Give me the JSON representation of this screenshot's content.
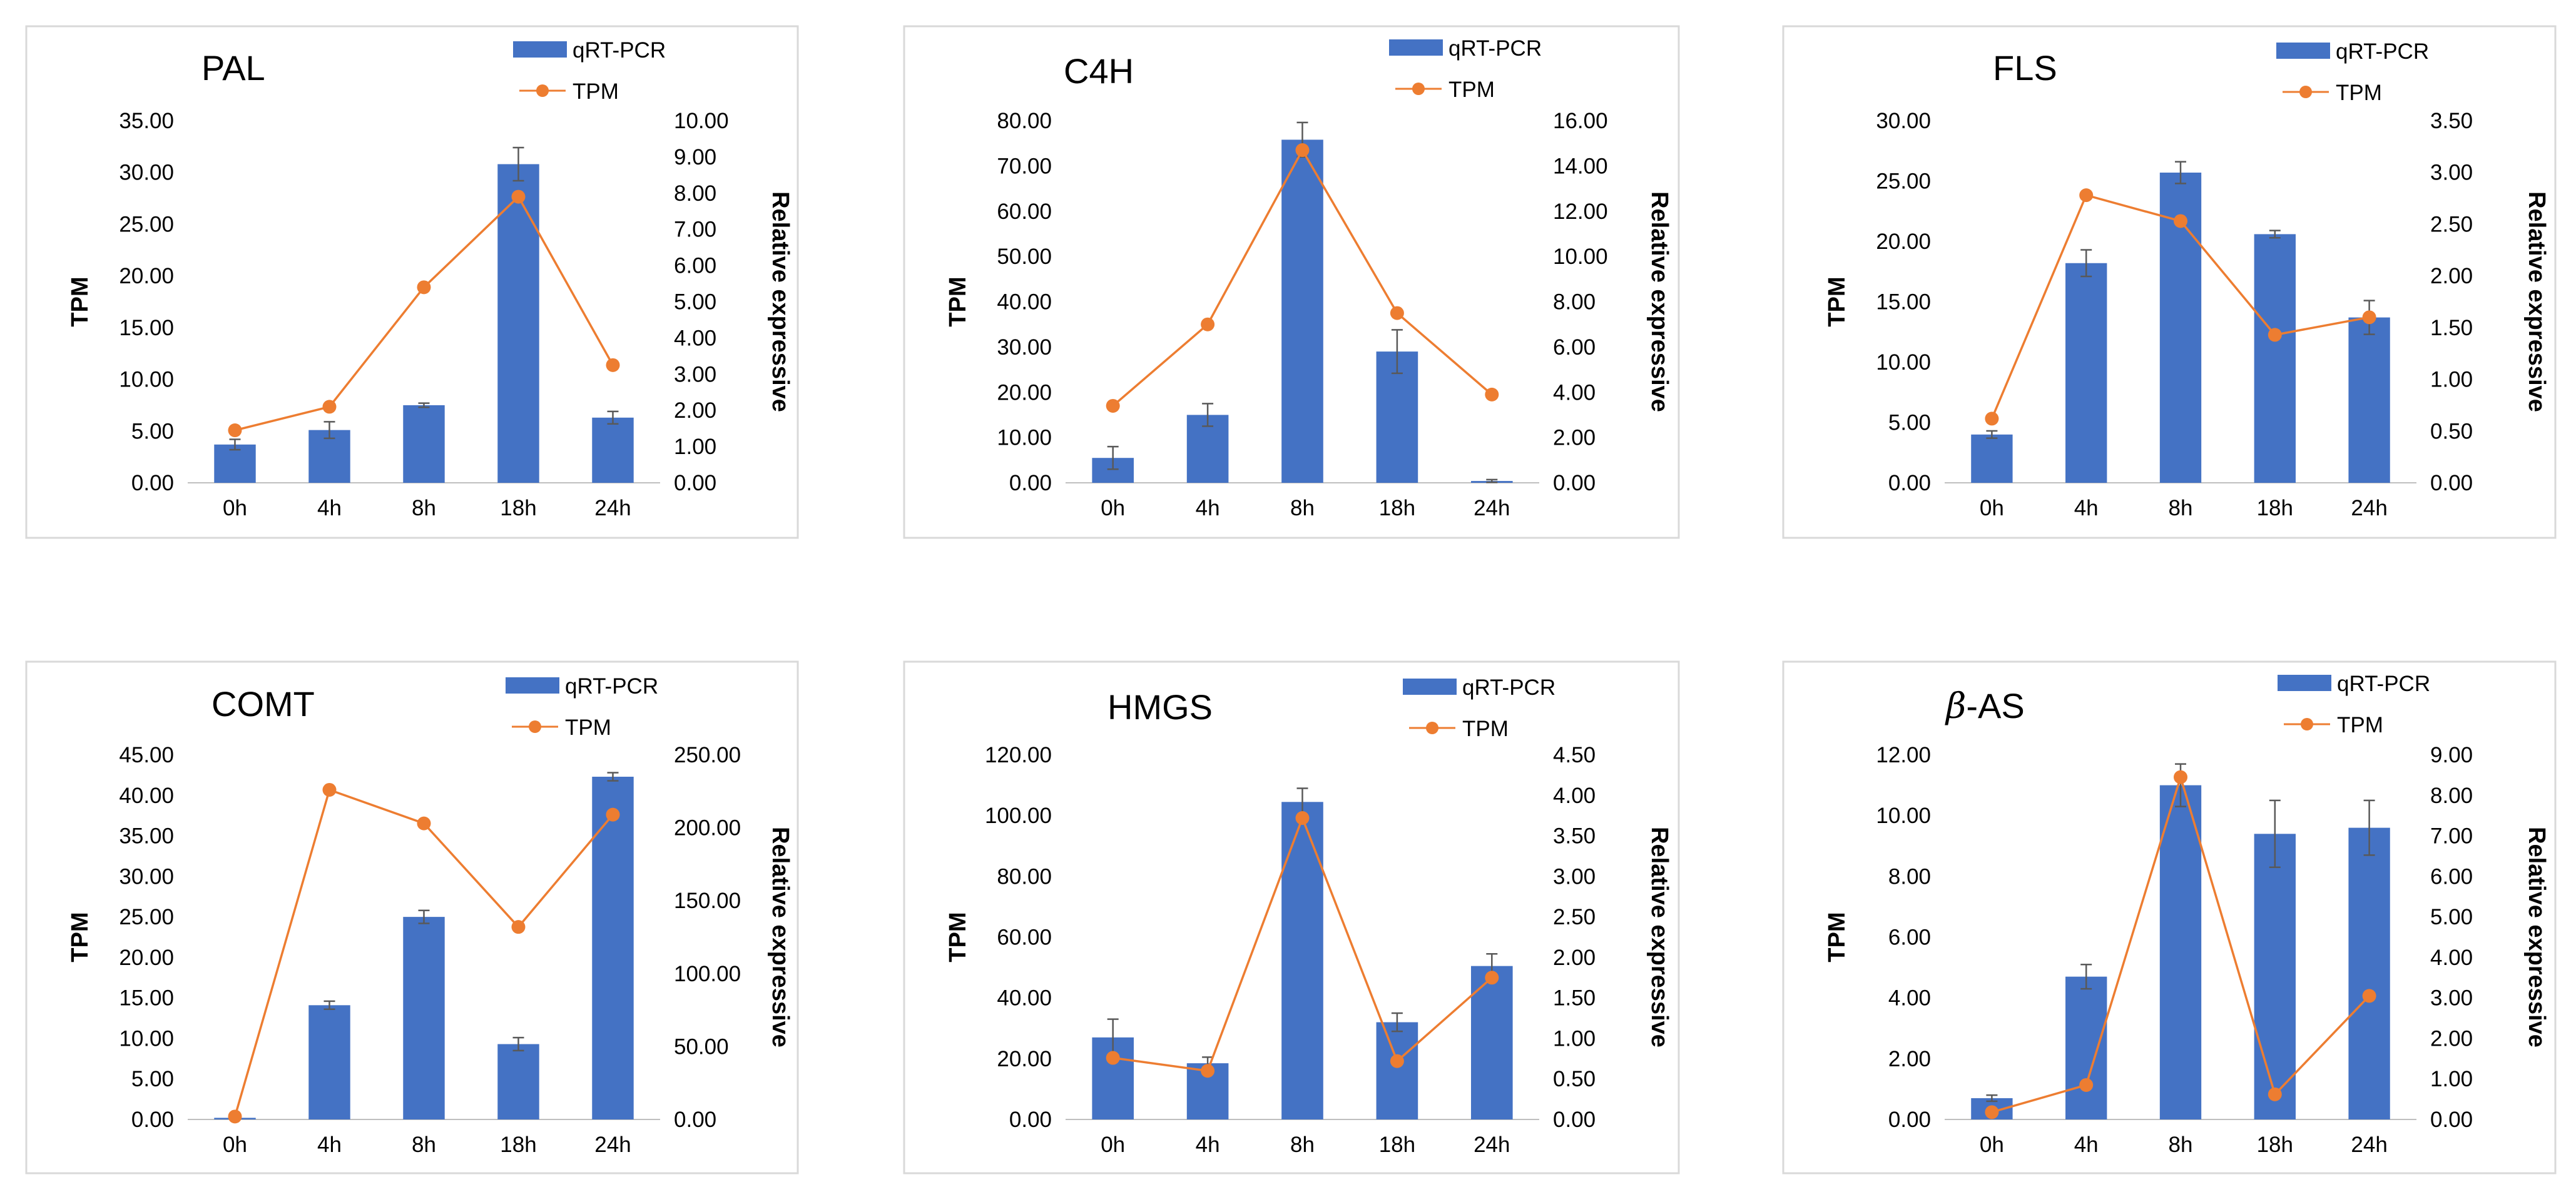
{
  "colors": {
    "bar": "#4472C4",
    "line": "#ED7D31",
    "frame": "#D9D9D9",
    "error": "#595959",
    "text": "#000000"
  },
  "legend": {
    "bar_label": "qRT-PCR",
    "line_label": "TPM"
  },
  "chart_data": [
    {
      "type": "bar+line",
      "title": "PAL",
      "categories": [
        "0h",
        "4h",
        "8h",
        "18h",
        "24h"
      ],
      "ylabel": "TPM",
      "y2label": "Relative expressive",
      "yticks": [
        "0.00",
        "5.00",
        "10.00",
        "15.00",
        "20.00",
        "25.00",
        "30.00",
        "35.00"
      ],
      "y2ticks": [
        "0.00",
        "1.00",
        "2.00",
        "3.00",
        "4.00",
        "5.00",
        "6.00",
        "7.00",
        "8.00",
        "9.00",
        "10.00"
      ],
      "ylim": [
        0,
        35
      ],
      "y2lim": [
        0,
        10
      ],
      "series": [
        {
          "name": "qRT-PCR",
          "type": "bar",
          "axis": "left",
          "values": [
            3.7,
            5.1,
            7.5,
            30.8,
            6.3
          ],
          "errors": [
            0.5,
            0.8,
            0.2,
            1.6,
            0.6
          ]
        },
        {
          "name": "TPM",
          "type": "line",
          "axis": "right",
          "values": [
            1.45,
            2.1,
            5.4,
            7.9,
            3.25
          ]
        }
      ]
    },
    {
      "type": "bar+line",
      "title": "C4H",
      "categories": [
        "0h",
        "4h",
        "8h",
        "18h",
        "24h"
      ],
      "ylabel": "TPM",
      "y2label": "Relative expressive",
      "yticks": [
        "0.00",
        "10.00",
        "20.00",
        "30.00",
        "40.00",
        "50.00",
        "60.00",
        "70.00",
        "80.00"
      ],
      "y2ticks": [
        "0.00",
        "2.00",
        "4.00",
        "6.00",
        "8.00",
        "10.00",
        "12.00",
        "14.00",
        "16.00"
      ],
      "ylim": [
        0,
        80
      ],
      "y2lim": [
        0,
        16
      ],
      "series": [
        {
          "name": "qRT-PCR",
          "type": "bar",
          "axis": "left",
          "values": [
            5.5,
            15.0,
            75.8,
            29.0,
            0.4
          ],
          "errors": [
            2.5,
            2.5,
            3.8,
            4.8,
            0.3
          ]
        },
        {
          "name": "TPM",
          "type": "line",
          "axis": "right",
          "values": [
            3.4,
            7.0,
            14.7,
            7.5,
            3.9
          ]
        }
      ]
    },
    {
      "type": "bar+line",
      "title": "FLS",
      "categories": [
        "0h",
        "4h",
        "8h",
        "18h",
        "24h"
      ],
      "ylabel": "TPM",
      "y2label": "Relative expressive",
      "yticks": [
        "0.00",
        "5.00",
        "10.00",
        "15.00",
        "20.00",
        "25.00",
        "30.00"
      ],
      "y2ticks": [
        "0.00",
        "0.50",
        "1.00",
        "1.50",
        "2.00",
        "2.50",
        "3.00",
        "3.50"
      ],
      "ylim": [
        0,
        30
      ],
      "y2lim": [
        0,
        3.5
      ],
      "series": [
        {
          "name": "qRT-PCR",
          "type": "bar",
          "axis": "left",
          "values": [
            4.0,
            18.2,
            25.7,
            20.6,
            13.7
          ],
          "errors": [
            0.3,
            1.1,
            0.9,
            0.3,
            1.4
          ]
        },
        {
          "name": "TPM",
          "type": "line",
          "axis": "right",
          "values": [
            0.62,
            2.78,
            2.53,
            1.43,
            1.6
          ]
        }
      ]
    },
    {
      "type": "bar+line",
      "title": "COMT",
      "categories": [
        "0h",
        "4h",
        "8h",
        "18h",
        "24h"
      ],
      "ylabel": "TPM",
      "y2label": "Relative expressive",
      "yticks": [
        "0.00",
        "5.00",
        "10.00",
        "15.00",
        "20.00",
        "25.00",
        "30.00",
        "35.00",
        "40.00",
        "45.00"
      ],
      "y2ticks": [
        "0.00",
        "50.00",
        "100.00",
        "150.00",
        "200.00",
        "250.00"
      ],
      "ylim": [
        0,
        45
      ],
      "y2lim": [
        0,
        250
      ],
      "series": [
        {
          "name": "qRT-PCR",
          "type": "bar",
          "axis": "left",
          "values": [
            0.2,
            14.1,
            25.0,
            9.3,
            42.3
          ],
          "errors": [
            0.1,
            0.5,
            0.8,
            0.8,
            0.5
          ]
        },
        {
          "name": "TPM",
          "type": "line",
          "axis": "right",
          "values": [
            2,
            226,
            203,
            132,
            209
          ]
        }
      ]
    },
    {
      "type": "bar+line",
      "title": "HMGS",
      "categories": [
        "0h",
        "4h",
        "8h",
        "18h",
        "24h"
      ],
      "ylabel": "TPM",
      "y2label": "Relative expressive",
      "yticks": [
        "0.00",
        "20.00",
        "40.00",
        "60.00",
        "80.00",
        "100.00",
        "120.00"
      ],
      "y2ticks": [
        "0.00",
        "0.50",
        "1.00",
        "1.50",
        "2.00",
        "2.50",
        "3.00",
        "3.50",
        "4.00",
        "4.50"
      ],
      "ylim": [
        0,
        120
      ],
      "y2lim": [
        0,
        4.5
      ],
      "series": [
        {
          "name": "qRT-PCR",
          "type": "bar",
          "axis": "left",
          "values": [
            27.0,
            18.5,
            104.5,
            32.0,
            50.5
          ],
          "errors": [
            6.0,
            2.0,
            4.5,
            3.0,
            4.0
          ]
        },
        {
          "name": "TPM",
          "type": "line",
          "axis": "right",
          "values": [
            0.76,
            0.6,
            3.72,
            0.72,
            1.75
          ]
        }
      ]
    },
    {
      "type": "bar+line",
      "title": "β-AS",
      "title_prefix": "β",
      "title_suffix": "-AS",
      "categories": [
        "0h",
        "4h",
        "8h",
        "18h",
        "24h"
      ],
      "ylabel": "TPM",
      "y2label": "Relative expressive",
      "yticks": [
        "0.00",
        "2.00",
        "4.00",
        "6.00",
        "8.00",
        "10.00",
        "12.00"
      ],
      "y2ticks": [
        "0.00",
        "1.00",
        "2.00",
        "3.00",
        "4.00",
        "5.00",
        "6.00",
        "7.00",
        "8.00",
        "9.00"
      ],
      "ylim": [
        0,
        12
      ],
      "y2lim": [
        0,
        9
      ],
      "series": [
        {
          "name": "qRT-PCR",
          "type": "bar",
          "axis": "left",
          "values": [
            0.7,
            4.7,
            11.0,
            9.4,
            9.6
          ],
          "errors": [
            0.1,
            0.4,
            0.7,
            1.1,
            0.9
          ]
        },
        {
          "name": "TPM",
          "type": "line",
          "axis": "right",
          "values": [
            0.18,
            0.85,
            8.45,
            0.62,
            3.05
          ]
        }
      ]
    }
  ]
}
